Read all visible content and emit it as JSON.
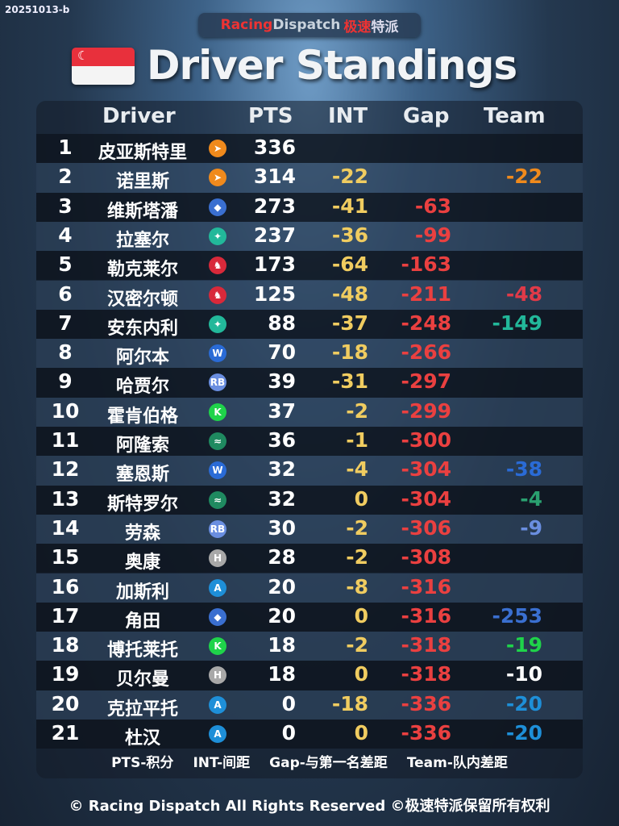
{
  "stamp": "20251013-b",
  "brand": {
    "racing": "Racing",
    "dispatch": "Dispatch",
    "cn1": "极速",
    "cn2": "特派"
  },
  "title": "Driver Standings",
  "headers": {
    "driver": "Driver",
    "pts": "PTS",
    "int": "INT",
    "gap": "Gap",
    "team": "Team"
  },
  "team_colors": {
    "mclaren": "#f08a1c",
    "redbull": "#3a6fd0",
    "mercedes": "#22b89a",
    "ferrari": "#d8293a",
    "williams": "#2a6bd6",
    "racingbulls": "#6a8ee0",
    "sauber": "#1fd34a",
    "astonmartin": "#1f8a60",
    "haas": "#a8a8a8",
    "alpine": "#1e8fd8"
  },
  "rows": [
    {
      "rank": "1",
      "name": "皮亚斯特里",
      "team": "mclaren",
      "pts": "336",
      "int": "",
      "gap": "",
      "team_gap": "",
      "team_gap_color": ""
    },
    {
      "rank": "2",
      "name": "诺里斯",
      "team": "mclaren",
      "pts": "314",
      "int": "-22",
      "gap": "",
      "team_gap": "-22",
      "team_gap_color": "#f08a1c"
    },
    {
      "rank": "3",
      "name": "维斯塔潘",
      "team": "redbull",
      "pts": "273",
      "int": "-41",
      "gap": "-63",
      "team_gap": "",
      "team_gap_color": ""
    },
    {
      "rank": "4",
      "name": "拉塞尔",
      "team": "mercedes",
      "pts": "237",
      "int": "-36",
      "gap": "-99",
      "team_gap": "",
      "team_gap_color": ""
    },
    {
      "rank": "5",
      "name": "勒克莱尔",
      "team": "ferrari",
      "pts": "173",
      "int": "-64",
      "gap": "-163",
      "team_gap": "",
      "team_gap_color": ""
    },
    {
      "rank": "6",
      "name": "汉密尔顿",
      "team": "ferrari",
      "pts": "125",
      "int": "-48",
      "gap": "-211",
      "team_gap": "-48",
      "team_gap_color": "#e03a48"
    },
    {
      "rank": "7",
      "name": "安东内利",
      "team": "mercedes",
      "pts": "88",
      "int": "-37",
      "gap": "-248",
      "team_gap": "-149",
      "team_gap_color": "#22b89a"
    },
    {
      "rank": "8",
      "name": "阿尔本",
      "team": "williams",
      "pts": "70",
      "int": "-18",
      "gap": "-266",
      "team_gap": "",
      "team_gap_color": ""
    },
    {
      "rank": "9",
      "name": "哈贾尔",
      "team": "racingbulls",
      "pts": "39",
      "int": "-31",
      "gap": "-297",
      "team_gap": "",
      "team_gap_color": ""
    },
    {
      "rank": "10",
      "name": "霍肯伯格",
      "team": "sauber",
      "pts": "37",
      "int": "-2",
      "gap": "-299",
      "team_gap": "",
      "team_gap_color": ""
    },
    {
      "rank": "11",
      "name": "阿隆索",
      "team": "astonmartin",
      "pts": "36",
      "int": "-1",
      "gap": "-300",
      "team_gap": "",
      "team_gap_color": ""
    },
    {
      "rank": "12",
      "name": "塞恩斯",
      "team": "williams",
      "pts": "32",
      "int": "-4",
      "gap": "-304",
      "team_gap": "-38",
      "team_gap_color": "#2a6bd6"
    },
    {
      "rank": "13",
      "name": "斯特罗尔",
      "team": "astonmartin",
      "pts": "32",
      "int": "0",
      "gap": "-304",
      "team_gap": "-4",
      "team_gap_color": "#2aa070"
    },
    {
      "rank": "14",
      "name": "劳森",
      "team": "racingbulls",
      "pts": "30",
      "int": "-2",
      "gap": "-306",
      "team_gap": "-9",
      "team_gap_color": "#6a8ee0"
    },
    {
      "rank": "15",
      "name": "奥康",
      "team": "haas",
      "pts": "28",
      "int": "-2",
      "gap": "-308",
      "team_gap": "",
      "team_gap_color": ""
    },
    {
      "rank": "16",
      "name": "加斯利",
      "team": "alpine",
      "pts": "20",
      "int": "-8",
      "gap": "-316",
      "team_gap": "",
      "team_gap_color": ""
    },
    {
      "rank": "17",
      "name": "角田",
      "team": "redbull",
      "pts": "20",
      "int": "0",
      "gap": "-316",
      "team_gap": "-253",
      "team_gap_color": "#3a6fd0"
    },
    {
      "rank": "18",
      "name": "博托莱托",
      "team": "sauber",
      "pts": "18",
      "int": "-2",
      "gap": "-318",
      "team_gap": "-19",
      "team_gap_color": "#1fd34a"
    },
    {
      "rank": "19",
      "name": "贝尔曼",
      "team": "haas",
      "pts": "18",
      "int": "0",
      "gap": "-318",
      "team_gap": "-10",
      "team_gap_color": "#ffffff"
    },
    {
      "rank": "20",
      "name": "克拉平托",
      "team": "alpine",
      "pts": "0",
      "int": "-18",
      "gap": "-336",
      "team_gap": "-20",
      "team_gap_color": "#1e8fd8"
    },
    {
      "rank": "21",
      "name": "杜汉",
      "team": "alpine",
      "pts": "0",
      "int": "0",
      "gap": "-336",
      "team_gap": "-20",
      "team_gap_color": "#1e8fd8"
    }
  ],
  "legend": [
    "PTS-积分",
    "INT-间距",
    "Gap-与第一名差距",
    "Team-队内差距"
  ],
  "footer": "© Racing Dispatch All Rights Reserved  ©极速特派保留所有权利"
}
